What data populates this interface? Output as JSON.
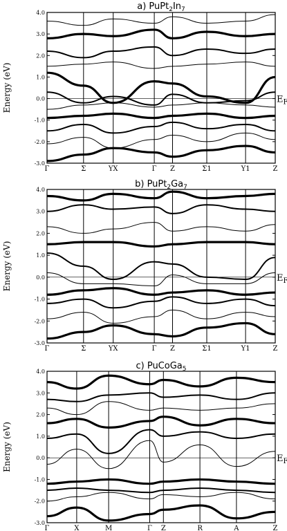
{
  "chart_data": [
    {
      "type": "line",
      "title": "a) PuPt",
      "title_sub": "2",
      "title_rest": "In",
      "title_sub2": "7",
      "ylabel": "Energy (eV)",
      "ylim": [
        -3.0,
        4.0
      ],
      "yticks": [
        "-3.0",
        "-2.0",
        "-1.0",
        "0.0",
        "1.0",
        "2.0",
        "3.0",
        "4.0"
      ],
      "kpoints": [
        "Γ",
        "Σ",
        "YX",
        "Γ",
        "Z",
        "Σ1",
        "Y1",
        "Z"
      ],
      "fermi_label": "E",
      "fermi_sub": "F",
      "grid": "vertical at high-symmetry points",
      "series": [
        {
          "values": [
            -2.9,
            -2.6,
            -2.3,
            -2.5,
            -2.7,
            -2.4,
            -2.2,
            -2.5
          ]
        },
        {
          "values": [
            -2.1,
            -1.8,
            -2.3,
            -1.9,
            -1.7,
            -2.0,
            -1.6,
            -1.9
          ]
        },
        {
          "values": [
            -1.5,
            -1.2,
            -1.6,
            -1.3,
            -1.1,
            -1.4,
            -1.2,
            -1.5
          ]
        },
        {
          "values": [
            -0.9,
            -0.8,
            -0.7,
            -0.9,
            -0.8,
            -0.7,
            -0.9,
            -0.8
          ]
        },
        {
          "values": [
            -0.5,
            -0.3,
            -0.2,
            -0.4,
            -0.3,
            -0.2,
            -0.3,
            -0.4
          ]
        },
        {
          "values": [
            0.3,
            -0.2,
            0.1,
            -0.3,
            0.2,
            -0.2,
            -0.1,
            0.3
          ]
        },
        {
          "values": [
            1.2,
            0.6,
            -0.2,
            0.8,
            0.7,
            0.1,
            -0.2,
            1.0
          ]
        },
        {
          "values": [
            1.5,
            1.6,
            1.7,
            1.4,
            1.5,
            1.6,
            1.7,
            1.5
          ]
        },
        {
          "values": [
            2.2,
            1.9,
            2.2,
            2.4,
            2.0,
            2.3,
            2.1,
            2.3
          ]
        },
        {
          "values": [
            2.8,
            3.0,
            2.9,
            3.2,
            2.8,
            3.1,
            2.9,
            3.0
          ]
        },
        {
          "values": [
            3.6,
            3.4,
            3.7,
            3.5,
            3.8,
            3.5,
            3.6,
            3.9
          ]
        }
      ]
    },
    {
      "type": "line",
      "title": "b) PuPt",
      "title_sub": "2",
      "title_rest": "Ga",
      "title_sub2": "7",
      "ylabel": "Energy (eV)",
      "ylim": [
        -3.0,
        4.0
      ],
      "yticks": [
        "-3.0",
        "-2.0",
        "-1.0",
        "0.0",
        "1.0",
        "2.0",
        "3.0",
        "4.0"
      ],
      "kpoints": [
        "Γ",
        "Σ",
        "YX",
        "Γ",
        "Z",
        "Σ1",
        "Y1",
        "Z"
      ],
      "fermi_label": "E",
      "fermi_sub": "F",
      "grid": "vertical at high-symmetry points",
      "series": [
        {
          "values": [
            -2.8,
            -2.5,
            -2.2,
            -2.6,
            -2.7,
            -2.3,
            -2.1,
            -2.6
          ]
        },
        {
          "values": [
            -1.9,
            -1.6,
            -2.1,
            -1.8,
            -1.5,
            -1.9,
            -1.6,
            -1.8
          ]
        },
        {
          "values": [
            -1.2,
            -1.0,
            -1.4,
            -1.1,
            -0.9,
            -1.2,
            -1.0,
            -1.3
          ]
        },
        {
          "values": [
            -0.8,
            -0.6,
            -0.5,
            -0.8,
            -0.7,
            -0.6,
            -0.8,
            -0.7
          ]
        },
        {
          "values": [
            0.2,
            -0.3,
            -0.3,
            -0.4,
            0.1,
            -0.3,
            -0.3,
            0.2
          ]
        },
        {
          "values": [
            1.1,
            0.5,
            -0.1,
            0.7,
            0.6,
            0.0,
            -0.1,
            0.9
          ]
        },
        {
          "values": [
            1.5,
            1.6,
            1.6,
            1.4,
            1.5,
            1.6,
            1.6,
            1.5
          ]
        },
        {
          "values": [
            2.3,
            2.0,
            2.2,
            2.5,
            2.1,
            2.3,
            2.1,
            2.4
          ]
        },
        {
          "values": [
            3.0,
            3.3,
            3.1,
            3.2,
            2.9,
            3.3,
            3.1,
            3.0
          ]
        },
        {
          "values": [
            3.7,
            3.5,
            3.8,
            3.6,
            3.9,
            3.6,
            3.7,
            3.8
          ]
        }
      ]
    },
    {
      "type": "line",
      "title": "c) PuCoGa",
      "title_sub": "5",
      "title_rest": "",
      "title_sub2": "",
      "ylabel": "Energy (eV)",
      "ylim": [
        -3.0,
        4.0
      ],
      "yticks": [
        "-3.0",
        "-2.0",
        "-1.0",
        "0.0",
        "1.0",
        "2.0",
        "3.0",
        "4.0"
      ],
      "kpoints": [
        "Γ",
        "X",
        "M",
        "Γ",
        "Z",
        "R",
        "A",
        "Z"
      ],
      "fermi_label": "E",
      "fermi_sub": "F",
      "grid": "vertical at high-symmetry points",
      "series": [
        {
          "values": [
            -2.7,
            -2.3,
            -2.9,
            -2.6,
            -2.4,
            -2.2,
            -2.8,
            -2.5
          ]
        },
        {
          "values": [
            -2.0,
            -1.8,
            -1.6,
            -1.9,
            -1.7,
            -1.8,
            -1.6,
            -1.9
          ]
        },
        {
          "values": [
            -1.5,
            -1.4,
            -1.5,
            -1.6,
            -1.5,
            -1.4,
            -1.5,
            -1.6
          ]
        },
        {
          "values": [
            -1.2,
            -1.1,
            -1.0,
            -1.2,
            -1.1,
            -1.0,
            -1.1,
            -1.2
          ]
        },
        {
          "values": [
            -0.3,
            0.4,
            -0.5,
            0.8,
            -0.2,
            0.6,
            -0.4,
            0.3
          ]
        },
        {
          "values": [
            0.9,
            1.1,
            0.2,
            1.3,
            1.0,
            1.2,
            0.9,
            1.1
          ]
        },
        {
          "values": [
            1.6,
            1.8,
            1.4,
            1.7,
            1.9,
            1.5,
            1.8,
            1.6
          ]
        },
        {
          "values": [
            2.3,
            2.0,
            2.6,
            2.2,
            2.3,
            2.2,
            2.3,
            2.5
          ]
        },
        {
          "values": [
            2.7,
            2.6,
            2.9,
            3.0,
            2.8,
            2.9,
            2.7,
            3.0
          ]
        },
        {
          "values": [
            3.5,
            3.2,
            3.8,
            3.4,
            3.6,
            3.3,
            3.7,
            3.5
          ]
        }
      ]
    }
  ]
}
